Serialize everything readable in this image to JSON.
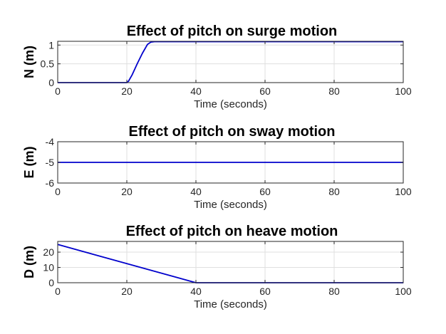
{
  "chart_data": [
    {
      "type": "line",
      "title": "Effect of pitch on surge motion",
      "xlabel": "Time (seconds)",
      "ylabel": "N (m)",
      "xlim": [
        0,
        100
      ],
      "ylim": [
        0,
        1.1
      ],
      "xticks": [
        0,
        20,
        40,
        60,
        80,
        100
      ],
      "xtick_labels": [
        "0",
        "20",
        "40",
        "60",
        "80",
        "100"
      ],
      "yticks": [
        0,
        0.5,
        1
      ],
      "ytick_labels": [
        "0",
        "0.5",
        "1"
      ],
      "grid": true,
      "line_color": "#0000cc",
      "x": [
        0,
        20,
        20.5,
        21.5,
        23,
        24.5,
        26,
        27,
        28,
        35,
        50,
        70,
        90,
        100
      ],
      "y": [
        0,
        0,
        0.04,
        0.2,
        0.5,
        0.78,
        1.02,
        1.08,
        1.09,
        1.09,
        1.09,
        1.09,
        1.09,
        1.09
      ]
    },
    {
      "type": "line",
      "title": "Effect of pitch on sway motion",
      "xlabel": "Time (seconds)",
      "ylabel": "E (m)",
      "xlim": [
        0,
        100
      ],
      "ylim": [
        -6,
        -4
      ],
      "xticks": [
        0,
        20,
        40,
        60,
        80,
        100
      ],
      "xtick_labels": [
        "0",
        "20",
        "40",
        "60",
        "80",
        "100"
      ],
      "yticks": [
        -6,
        -5,
        -4
      ],
      "ytick_labels": [
        "-6",
        "-5",
        "-4"
      ],
      "grid": true,
      "line_color": "#0000cc",
      "x": [
        0,
        100
      ],
      "y": [
        -5,
        -5
      ]
    },
    {
      "type": "line",
      "title": "Effect of pitch on heave motion",
      "xlabel": "Time (seconds)",
      "ylabel": "D (m)",
      "xlim": [
        0,
        100
      ],
      "ylim": [
        0,
        27
      ],
      "xticks": [
        0,
        20,
        40,
        60,
        80,
        100
      ],
      "xtick_labels": [
        "0",
        "20",
        "40",
        "60",
        "80",
        "100"
      ],
      "yticks": [
        0,
        10,
        20
      ],
      "ytick_labels": [
        "0",
        "10",
        "20"
      ],
      "grid": true,
      "line_color": "#0000cc",
      "x": [
        0,
        40,
        100
      ],
      "y": [
        25,
        0,
        0
      ]
    }
  ]
}
